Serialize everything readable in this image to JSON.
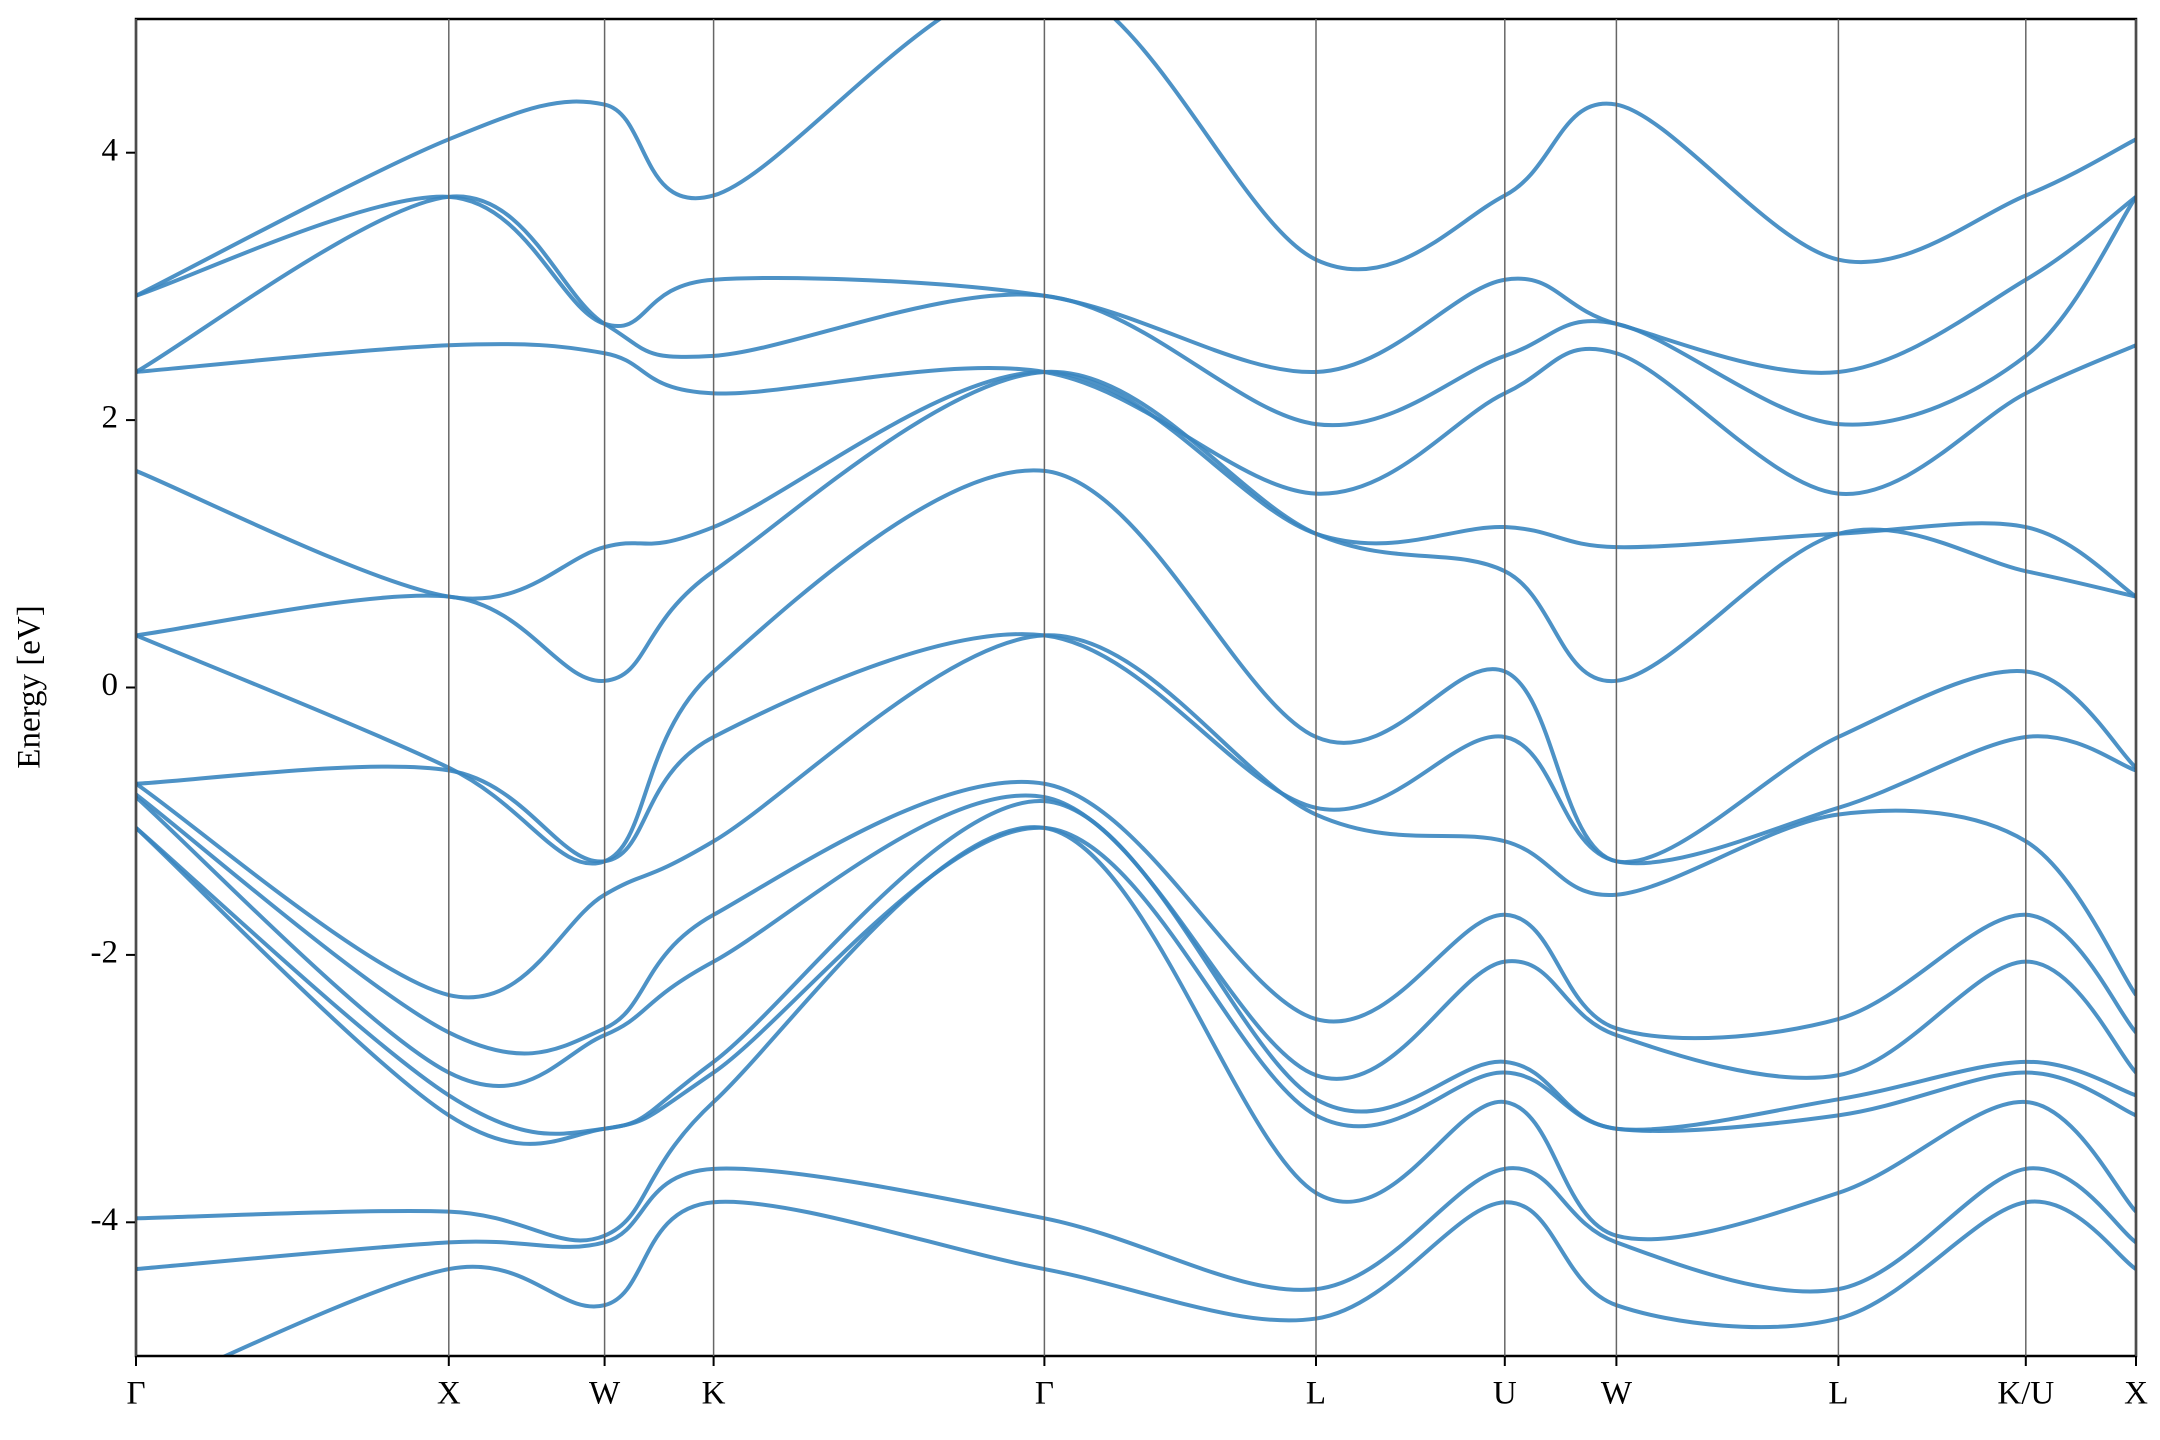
{
  "chart_data": {
    "type": "band-structure",
    "y_label": "Energy [eV]",
    "color": "#3a86c0",
    "ylim": [
      -5,
      5
    ],
    "yticks": [
      -4,
      -2,
      0,
      2,
      4
    ],
    "xlim": [
      0,
      10
    ],
    "xticks": [
      {
        "value": 0,
        "label": "Γ"
      },
      {
        "value": 1.564,
        "label": "X"
      },
      {
        "value": 2.343,
        "label": "W"
      },
      {
        "value": 2.888,
        "label": "K"
      },
      {
        "value": 4.542,
        "label": "Γ"
      },
      {
        "value": 5.9,
        "label": "L"
      },
      {
        "value": 6.844,
        "label": "U"
      },
      {
        "value": 7.402,
        "label": "W"
      },
      {
        "value": 8.512,
        "label": "L"
      },
      {
        "value": 9.449,
        "label": "K/U"
      },
      {
        "value": 10,
        "label": "X"
      }
    ],
    "x": [
      0,
      1.564,
      2.343,
      2.888,
      4.542,
      5.9,
      6.844,
      7.402,
      8.512,
      9.449,
      10
    ],
    "bands": [
      [
        -5.3,
        -4.35,
        -4.62,
        -3.85,
        -4.35,
        -4.72,
        -3.85,
        -4.62,
        -4.72,
        -3.85,
        -4.35
      ],
      [
        -4.35,
        -4.15,
        -4.15,
        -3.6,
        -3.97,
        -4.5,
        -3.6,
        -4.15,
        -4.5,
        -3.6,
        -4.15
      ],
      [
        -3.97,
        -3.92,
        -4.1,
        -3.1,
        -1.05,
        -3.78,
        -3.1,
        -4.1,
        -3.78,
        -3.1,
        -3.92
      ],
      [
        -1.05,
        -3.2,
        -3.3,
        -2.88,
        -1.05,
        -3.2,
        -2.88,
        -3.3,
        -3.2,
        -2.88,
        -3.2
      ],
      [
        -1.05,
        -3.05,
        -3.3,
        -2.8,
        -0.85,
        -3.08,
        -2.8,
        -3.3,
        -3.08,
        -2.8,
        -3.05
      ],
      [
        -0.82,
        -2.88,
        -2.6,
        -2.05,
        -0.82,
        -2.9,
        -2.05,
        -2.6,
        -2.9,
        -2.05,
        -2.88
      ],
      [
        -0.8,
        -2.58,
        -2.55,
        -1.7,
        -0.72,
        -2.48,
        -1.7,
        -2.55,
        -2.48,
        -1.7,
        -2.58
      ],
      [
        -0.72,
        -2.3,
        -1.55,
        -1.15,
        0.39,
        -0.95,
        -1.15,
        -1.55,
        -0.95,
        -1.15,
        -2.3
      ],
      [
        -0.72,
        -0.62,
        -1.3,
        -0.37,
        0.39,
        -0.9,
        -0.37,
        -1.3,
        -0.9,
        -0.37,
        -0.62
      ],
      [
        0.39,
        -0.6,
        -1.3,
        0.12,
        1.62,
        -0.37,
        0.12,
        -1.3,
        -0.37,
        0.12,
        -0.6
      ],
      [
        0.39,
        0.68,
        0.05,
        0.87,
        2.36,
        1.15,
        0.87,
        0.05,
        1.15,
        0.87,
        0.68
      ],
      [
        1.62,
        0.68,
        1.05,
        1.2,
        2.36,
        1.15,
        1.2,
        1.05,
        1.15,
        1.2,
        0.68
      ],
      [
        2.36,
        2.56,
        2.5,
        2.2,
        2.36,
        1.45,
        2.2,
        2.5,
        1.45,
        2.2,
        2.56
      ],
      [
        2.36,
        3.67,
        2.72,
        2.48,
        2.93,
        1.97,
        2.48,
        2.72,
        1.97,
        2.48,
        3.67
      ],
      [
        2.93,
        3.67,
        2.72,
        3.05,
        2.93,
        2.36,
        3.05,
        2.72,
        2.36,
        3.05,
        3.67
      ],
      [
        2.93,
        4.1,
        4.36,
        3.68,
        5.3,
        3.2,
        3.68,
        4.36,
        3.2,
        3.68,
        4.1
      ]
    ]
  }
}
